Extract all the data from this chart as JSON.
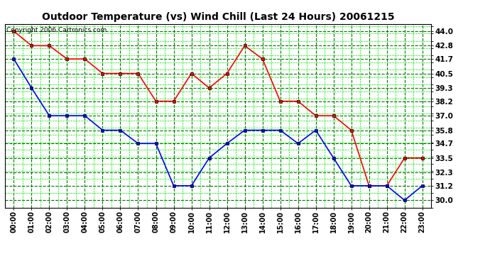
{
  "title": "Outdoor Temperature (vs) Wind Chill (Last 24 Hours) 20061215",
  "copyright": "Copyright 2006 Cartronics.com",
  "x_labels": [
    "00:00",
    "01:00",
    "02:00",
    "03:00",
    "04:00",
    "05:00",
    "06:00",
    "07:00",
    "08:00",
    "09:00",
    "10:00",
    "11:00",
    "12:00",
    "13:00",
    "14:00",
    "15:00",
    "16:00",
    "17:00",
    "18:00",
    "19:00",
    "20:00",
    "21:00",
    "22:00",
    "23:00"
  ],
  "y_ticks": [
    30.0,
    31.2,
    32.3,
    33.5,
    34.7,
    35.8,
    37.0,
    38.2,
    39.3,
    40.5,
    41.7,
    42.8,
    44.0
  ],
  "ylim": [
    29.4,
    44.6
  ],
  "temp_red": [
    44.0,
    42.8,
    42.8,
    41.7,
    41.7,
    40.5,
    40.5,
    40.5,
    38.2,
    38.2,
    40.5,
    39.3,
    40.5,
    42.8,
    41.7,
    38.2,
    38.2,
    37.0,
    37.0,
    35.8,
    31.2,
    31.2,
    33.5,
    33.5
  ],
  "wind_blue": [
    41.7,
    39.3,
    37.0,
    37.0,
    37.0,
    35.8,
    35.8,
    34.7,
    34.7,
    31.2,
    31.2,
    33.5,
    34.7,
    35.8,
    35.8,
    35.8,
    34.7,
    35.8,
    33.5,
    31.2,
    31.2,
    31.2,
    30.0,
    31.2
  ],
  "line_color_red": "#ff0000",
  "line_color_blue": "#0000ff",
  "marker_color": "#000000",
  "bg_color": "#ffffff",
  "grid_color_major": "#007700",
  "grid_color_minor": "#00ee00",
  "title_fontsize": 10,
  "copyright_fontsize": 6.5,
  "tick_fontsize": 7.5
}
